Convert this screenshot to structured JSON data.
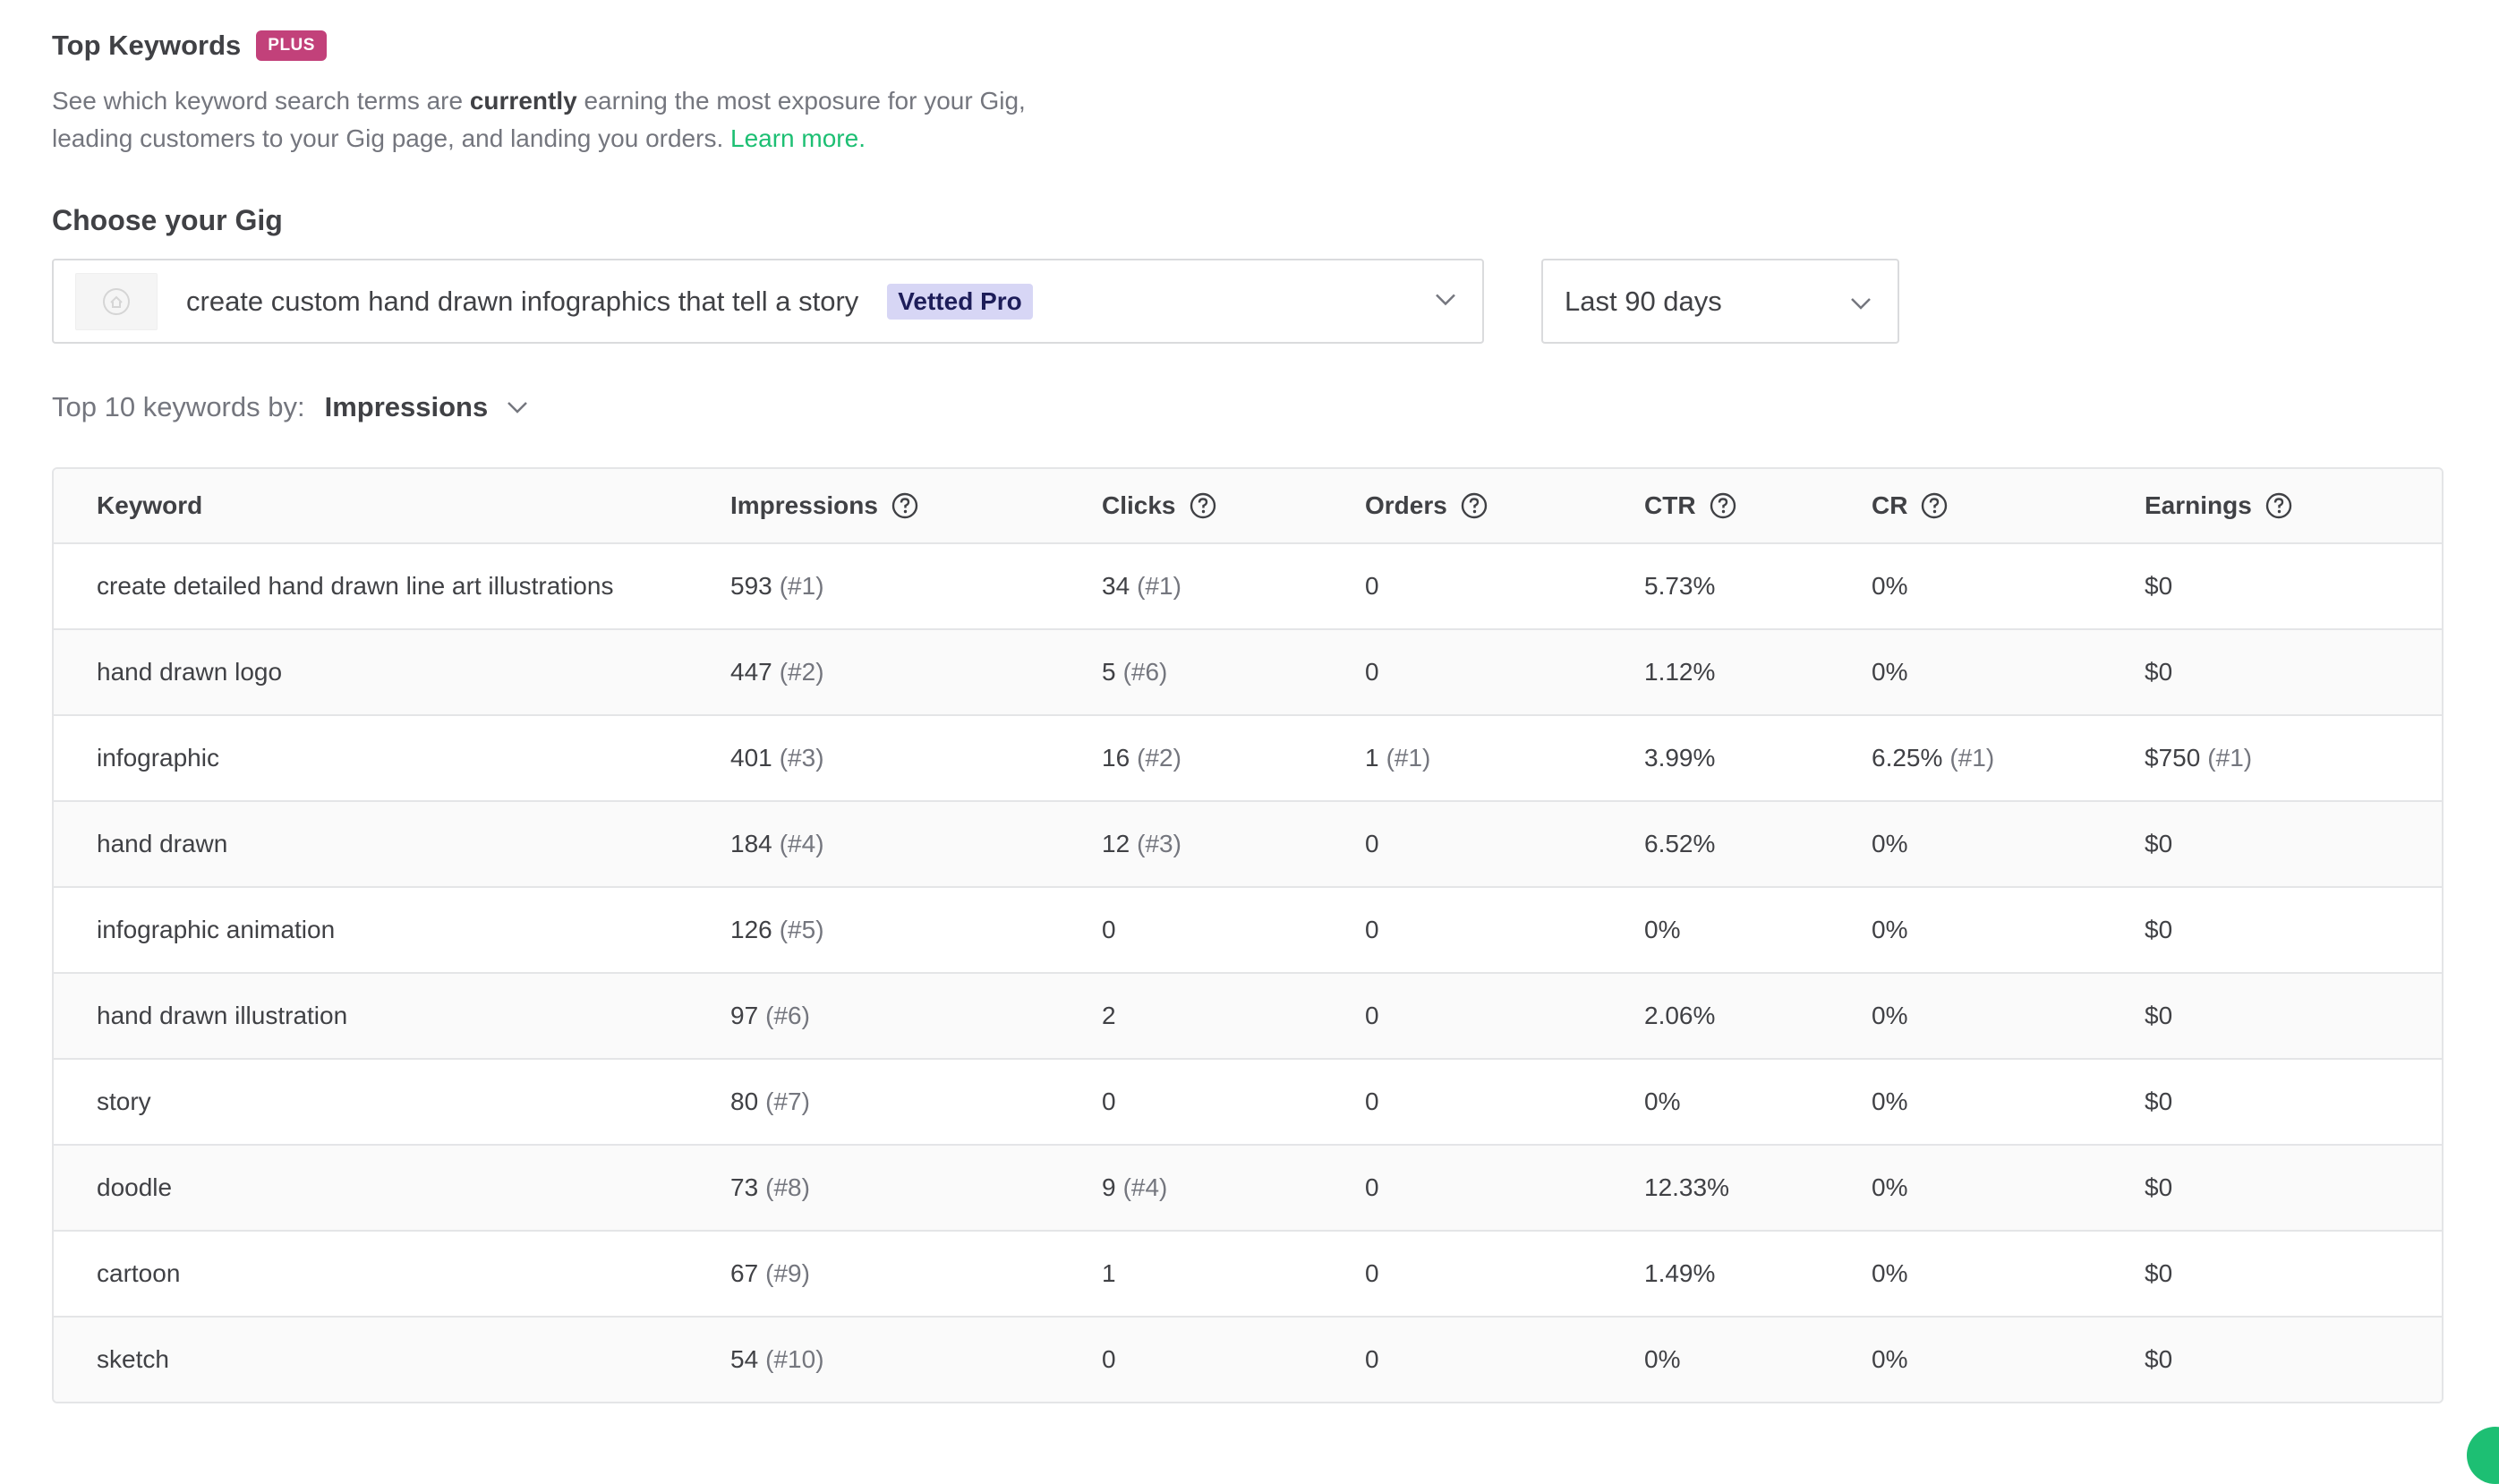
{
  "header": {
    "title": "Top Keywords",
    "badge": "PLUS",
    "description_part1": "See which keyword search terms are ",
    "description_bold": "currently",
    "description_part2": " earning the most exposure for your Gig, leading customers to your Gig page, and landing you orders. ",
    "learn_more": "Learn more."
  },
  "gig_selector": {
    "label": "Choose your Gig",
    "gig_title": "create custom hand drawn infographics that tell a story",
    "gig_badge": "Vetted Pro",
    "date_range": "Last 90 days"
  },
  "sort": {
    "label": "Top 10 keywords by:",
    "value": "Impressions"
  },
  "table": {
    "columns": [
      "Keyword",
      "Impressions",
      "Clicks",
      "Orders",
      "CTR",
      "CR",
      "Earnings"
    ],
    "rows": [
      {
        "keyword": "create detailed hand drawn line art illustrations",
        "impressions": "593",
        "impressions_rank": "(#1)",
        "clicks": "34",
        "clicks_rank": "(#1)",
        "orders": "0",
        "orders_rank": "",
        "ctr": "5.73%",
        "cr": "0%",
        "cr_rank": "",
        "earnings": "$0",
        "earnings_rank": ""
      },
      {
        "keyword": "hand drawn logo",
        "impressions": "447",
        "impressions_rank": "(#2)",
        "clicks": "5",
        "clicks_rank": "(#6)",
        "orders": "0",
        "orders_rank": "",
        "ctr": "1.12%",
        "cr": "0%",
        "cr_rank": "",
        "earnings": "$0",
        "earnings_rank": ""
      },
      {
        "keyword": "infographic",
        "impressions": "401",
        "impressions_rank": "(#3)",
        "clicks": "16",
        "clicks_rank": "(#2)",
        "orders": "1",
        "orders_rank": "(#1)",
        "ctr": "3.99%",
        "cr": "6.25%",
        "cr_rank": "(#1)",
        "earnings": "$750",
        "earnings_rank": "(#1)"
      },
      {
        "keyword": "hand drawn",
        "impressions": "184",
        "impressions_rank": "(#4)",
        "clicks": "12",
        "clicks_rank": "(#3)",
        "orders": "0",
        "orders_rank": "",
        "ctr": "6.52%",
        "cr": "0%",
        "cr_rank": "",
        "earnings": "$0",
        "earnings_rank": ""
      },
      {
        "keyword": "infographic animation",
        "impressions": "126",
        "impressions_rank": "(#5)",
        "clicks": "0",
        "clicks_rank": "",
        "orders": "0",
        "orders_rank": "",
        "ctr": "0%",
        "cr": "0%",
        "cr_rank": "",
        "earnings": "$0",
        "earnings_rank": ""
      },
      {
        "keyword": "hand drawn illustration",
        "impressions": "97",
        "impressions_rank": "(#6)",
        "clicks": "2",
        "clicks_rank": "",
        "orders": "0",
        "orders_rank": "",
        "ctr": "2.06%",
        "cr": "0%",
        "cr_rank": "",
        "earnings": "$0",
        "earnings_rank": ""
      },
      {
        "keyword": "story",
        "impressions": "80",
        "impressions_rank": "(#7)",
        "clicks": "0",
        "clicks_rank": "",
        "orders": "0",
        "orders_rank": "",
        "ctr": "0%",
        "cr": "0%",
        "cr_rank": "",
        "earnings": "$0",
        "earnings_rank": ""
      },
      {
        "keyword": "doodle",
        "impressions": "73",
        "impressions_rank": "(#8)",
        "clicks": "9",
        "clicks_rank": "(#4)",
        "orders": "0",
        "orders_rank": "",
        "ctr": "12.33%",
        "cr": "0%",
        "cr_rank": "",
        "earnings": "$0",
        "earnings_rank": ""
      },
      {
        "keyword": "cartoon",
        "impressions": "67",
        "impressions_rank": "(#9)",
        "clicks": "1",
        "clicks_rank": "",
        "orders": "0",
        "orders_rank": "",
        "ctr": "1.49%",
        "cr": "0%",
        "cr_rank": "",
        "earnings": "$0",
        "earnings_rank": ""
      },
      {
        "keyword": "sketch",
        "impressions": "54",
        "impressions_rank": "(#10)",
        "clicks": "0",
        "clicks_rank": "",
        "orders": "0",
        "orders_rank": "",
        "ctr": "0%",
        "cr": "0%",
        "cr_rank": "",
        "earnings": "$0",
        "earnings_rank": ""
      }
    ]
  },
  "colors": {
    "plus_badge": "#c2417a",
    "vetted_badge_bg": "#d7d6f5",
    "link": "#1dbf73",
    "text": "#404145",
    "muted": "#74767e"
  },
  "icons": {
    "help": "question-circle-icon",
    "chevron": "chevron-down-icon",
    "thumbnail": "gig-thumbnail-placeholder-icon"
  }
}
